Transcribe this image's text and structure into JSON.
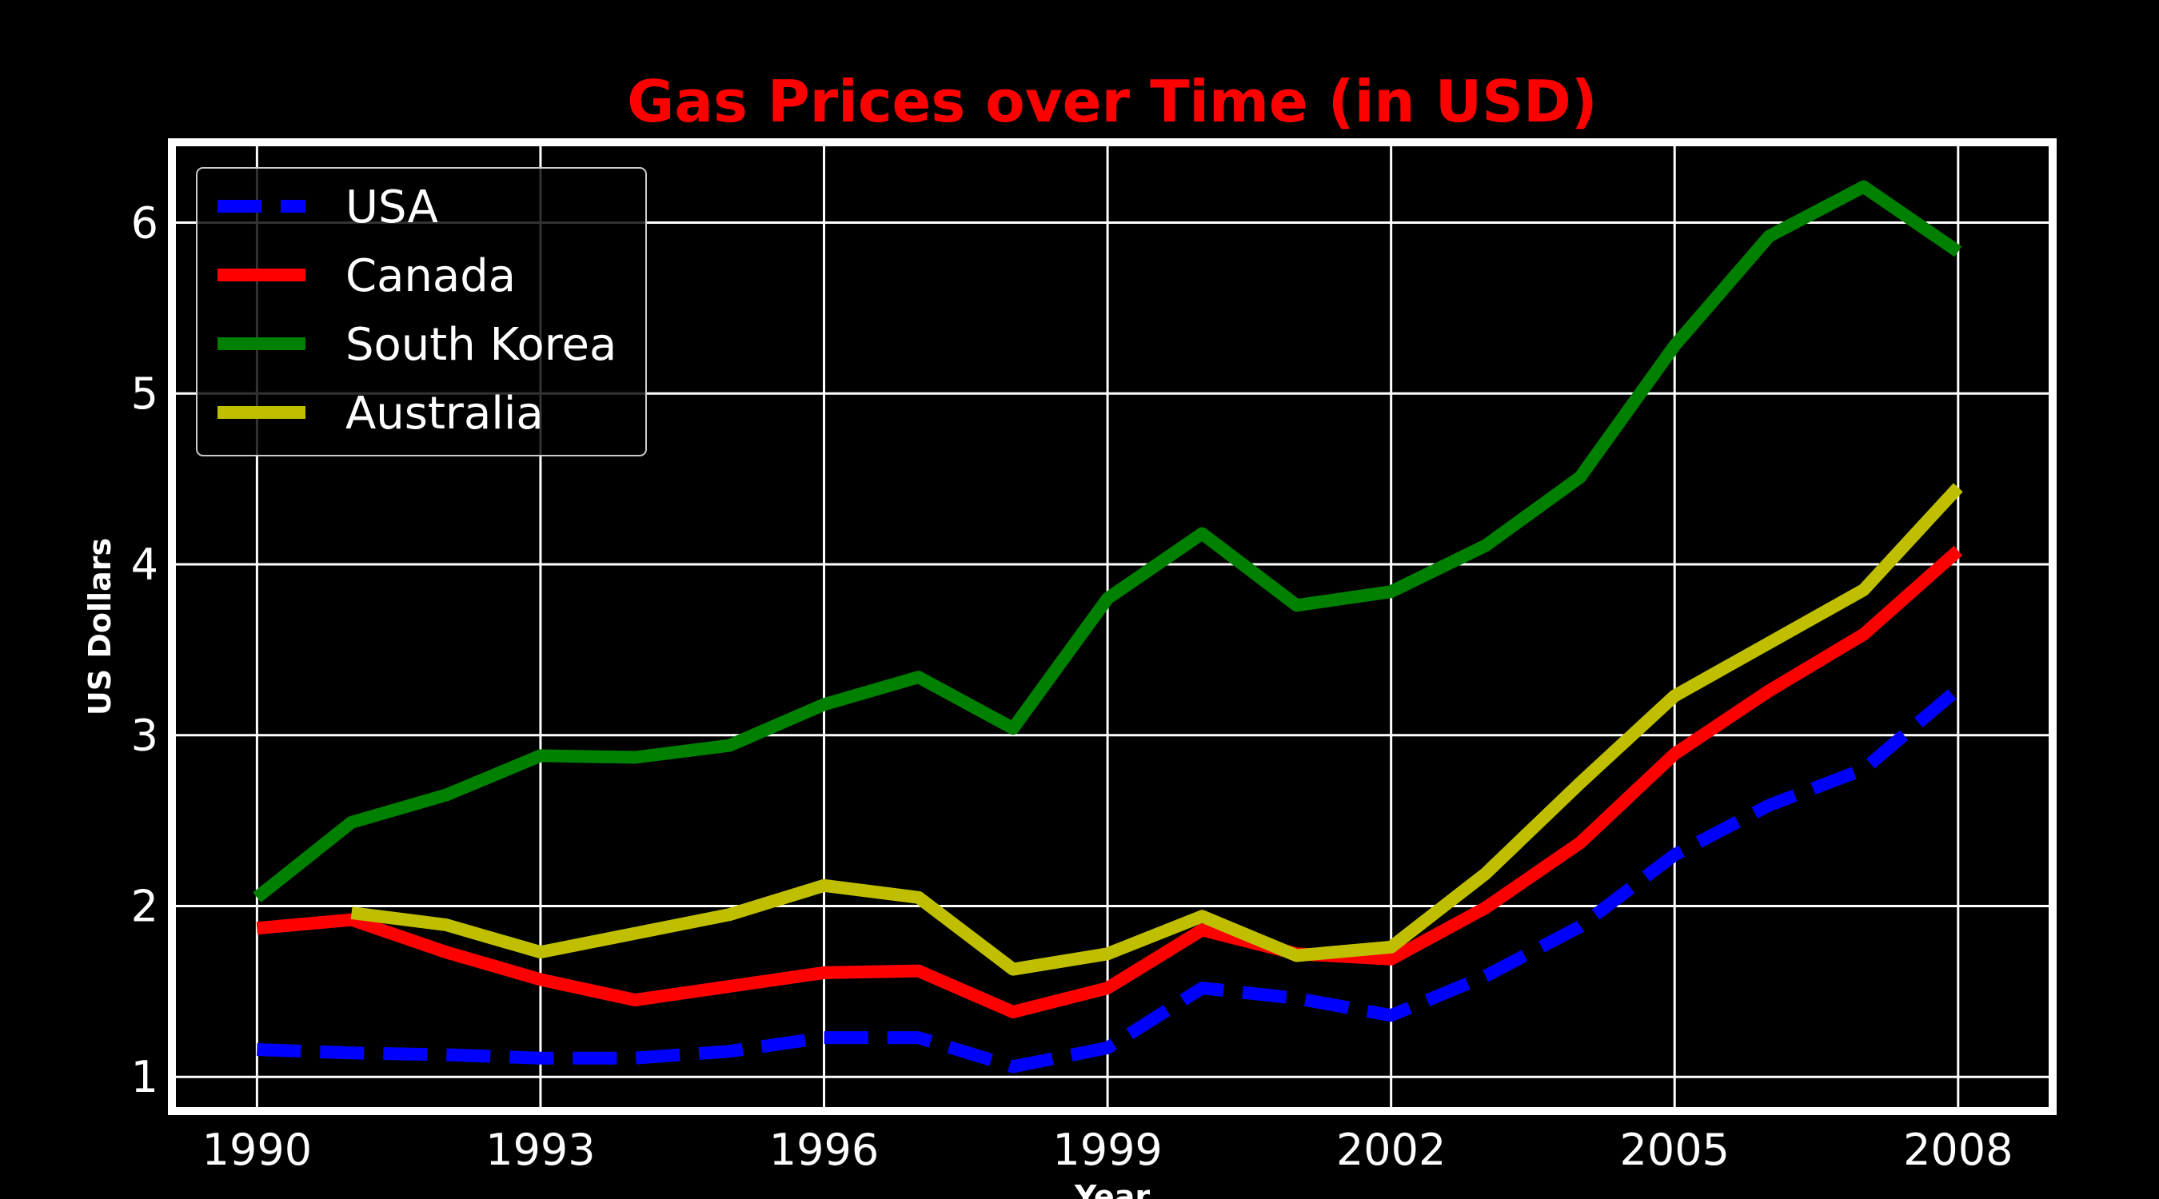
{
  "chart_data": {
    "type": "line",
    "title": "Gas Prices over Time (in USD)",
    "title_color": "#ff0000",
    "xlabel": "Year",
    "ylabel": "US Dollars",
    "x": [
      1990,
      1991,
      1992,
      1993,
      1994,
      1995,
      1996,
      1997,
      1998,
      1999,
      2000,
      2001,
      2002,
      2003,
      2004,
      2005,
      2006,
      2007,
      2008
    ],
    "xticks": [
      1990,
      1993,
      1996,
      1999,
      2002,
      2005,
      2008
    ],
    "yticks": [
      1,
      2,
      3,
      4,
      5,
      6
    ],
    "xlim": [
      1989.1,
      2009.0
    ],
    "ylim": [
      0.8,
      6.47
    ],
    "grid": true,
    "legend_position": "top-left",
    "series": [
      {
        "name": "USA",
        "color": "#0000ff",
        "style": "dashed",
        "values": [
          1.16,
          1.14,
          1.13,
          1.11,
          1.11,
          1.15,
          1.23,
          1.23,
          1.06,
          1.17,
          1.52,
          1.46,
          1.36,
          1.59,
          1.88,
          2.3,
          2.59,
          2.8,
          3.27
        ]
      },
      {
        "name": "Canada",
        "color": "#ff0000",
        "style": "solid",
        "values": [
          1.87,
          1.92,
          1.73,
          1.57,
          1.45,
          1.53,
          1.61,
          1.62,
          1.38,
          1.52,
          1.86,
          1.72,
          1.69,
          1.99,
          2.37,
          2.89,
          3.26,
          3.59,
          4.08
        ]
      },
      {
        "name": "South Korea",
        "color": "#008000",
        "style": "solid",
        "values": [
          2.05,
          2.49,
          2.65,
          2.88,
          2.87,
          2.94,
          3.18,
          3.34,
          3.04,
          3.8,
          4.18,
          3.76,
          3.84,
          4.11,
          4.51,
          5.28,
          5.92,
          6.21,
          5.83
        ]
      },
      {
        "name": "Australia",
        "color": "#bfbf00",
        "style": "solid",
        "values": [
          null,
          1.96,
          1.89,
          1.73,
          1.84,
          1.95,
          2.12,
          2.05,
          1.63,
          1.72,
          1.94,
          1.71,
          1.76,
          2.19,
          2.72,
          3.23,
          3.54,
          3.85,
          4.45
        ]
      }
    ]
  }
}
